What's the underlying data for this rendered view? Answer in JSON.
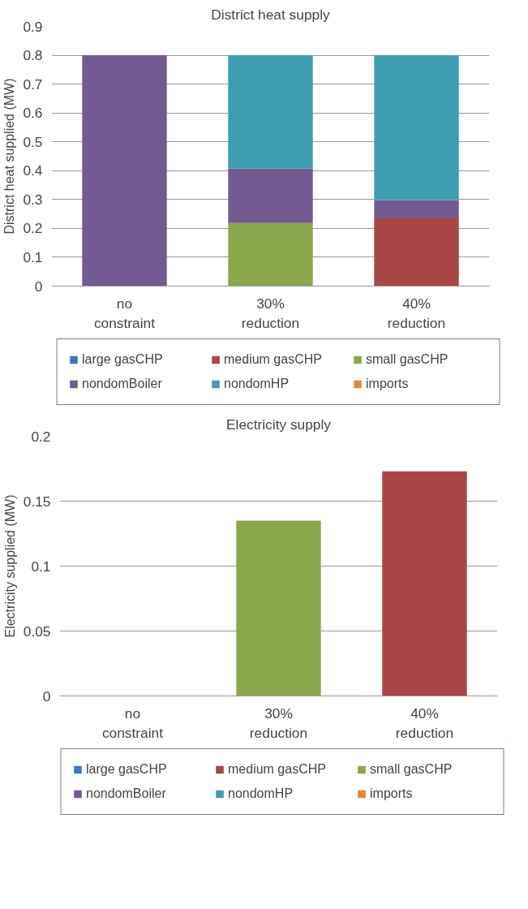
{
  "chart_data": [
    {
      "type": "bar",
      "title": "District heat supply",
      "ylabel": "District heat supplied (MW)",
      "categories": [
        "no\nconstraint",
        "30%\nreduction",
        "40%\nreduction"
      ],
      "stacked": true,
      "ylim": [
        0,
        0.9
      ],
      "yticks": [
        0,
        0.1,
        0.2,
        0.3,
        0.4,
        0.5,
        0.6,
        0.7,
        0.8,
        0.9
      ],
      "grid": "y",
      "legend": "bottom",
      "series": [
        {
          "name": "large gasCHP",
          "color": "#4178b4",
          "values": [
            0,
            0,
            0
          ]
        },
        {
          "name": "medium gasCHP",
          "color": "#a84545",
          "values": [
            0,
            0,
            0.235
          ]
        },
        {
          "name": "small gasCHP",
          "color": "#8aa74c",
          "values": [
            0,
            0.219,
            0
          ]
        },
        {
          "name": "nondomBoiler",
          "color": "#735a91",
          "values": [
            0.8,
            0.188,
            0.063
          ]
        },
        {
          "name": "nondomHP",
          "color": "#3f9db1",
          "values": [
            0,
            0.393,
            0.502
          ]
        },
        {
          "name": "imports",
          "color": "#e98538",
          "values": [
            0,
            0,
            0
          ]
        }
      ]
    },
    {
      "type": "bar",
      "title": "Electricity supply",
      "ylabel": "Electricity supplied (MW)",
      "categories": [
        "no\nconstraint",
        "30%\nreduction",
        "40%\nreduction"
      ],
      "stacked": true,
      "ylim": [
        0,
        0.2
      ],
      "yticks": [
        0,
        0.05,
        0.1,
        0.15,
        0.2
      ],
      "grid": "y",
      "legend": "bottom",
      "series": [
        {
          "name": "large gasCHP",
          "color": "#4178b4",
          "values": [
            0,
            0,
            0
          ]
        },
        {
          "name": "medium gasCHP",
          "color": "#a84545",
          "values": [
            0,
            0,
            0.173
          ]
        },
        {
          "name": "small gasCHP",
          "color": "#8aa74c",
          "values": [
            0,
            0.135,
            0
          ]
        },
        {
          "name": "nondomBoiler",
          "color": "#735a91",
          "values": [
            0,
            0,
            0
          ]
        },
        {
          "name": "nondomHP",
          "color": "#3f9db1",
          "values": [
            0,
            0,
            0
          ]
        },
        {
          "name": "imports",
          "color": "#e98538",
          "values": [
            0,
            0,
            0
          ]
        }
      ]
    }
  ]
}
